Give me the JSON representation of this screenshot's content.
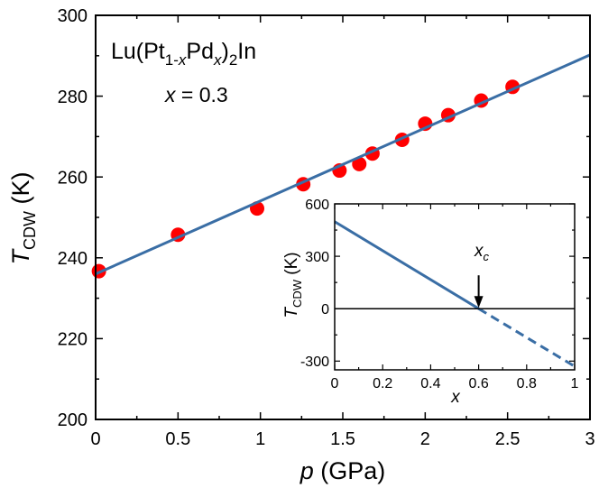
{
  "chart_data": [
    {
      "type": "scatter",
      "title": "",
      "xlabel": {
        "main": "p",
        "rest": " (GPa)"
      },
      "ylabel": {
        "main": "T",
        "sub": "CDW",
        "rest": " (K)"
      },
      "xlim": [
        0,
        3
      ],
      "ylim": [
        200,
        300
      ],
      "xticks": [
        0,
        0.5,
        1,
        1.5,
        2,
        2.5,
        3
      ],
      "xtick_labels": [
        "0",
        "0.5",
        "1",
        "1.5",
        "2",
        "2.5",
        "3"
      ],
      "yticks": [
        200,
        220,
        240,
        260,
        280,
        300
      ],
      "ytick_labels": [
        "200",
        "220",
        "240",
        "260",
        "280",
        "300"
      ],
      "grid": false,
      "annotations": {
        "compound": {
          "a": "Lu(Pt",
          "b": "1-",
          "c": "x",
          "d": "Pd",
          "e": "x",
          "f": ")",
          "g": "2",
          "h": "In"
        },
        "composition": {
          "var": "x",
          "rest": " = 0.3"
        }
      },
      "series": [
        {
          "marker": "circle",
          "color": "#ff0000",
          "points": [
            [
              0.02,
              236.7
            ],
            [
              0.5,
              245.7
            ],
            [
              0.98,
              252.2
            ],
            [
              1.26,
              258.2
            ],
            [
              1.48,
              261.6
            ],
            [
              1.6,
              263.2
            ],
            [
              1.68,
              265.8
            ],
            [
              1.86,
              269.2
            ],
            [
              2.0,
              273.2
            ],
            [
              2.14,
              275.3
            ],
            [
              2.34,
              278.9
            ],
            [
              2.53,
              282.3
            ]
          ]
        },
        {
          "style": "line",
          "color": "#3a6ea5",
          "points": [
            [
              0,
              236
            ],
            [
              3,
              290.2
            ]
          ]
        }
      ]
    },
    {
      "type": "line",
      "title": "",
      "xlabel": {
        "main": "x"
      },
      "ylabel": {
        "main": "T",
        "sub": "CDW",
        "rest": " (K)"
      },
      "xlim": [
        0,
        1
      ],
      "ylim": [
        -350,
        600
      ],
      "xticks": [
        0,
        0.2,
        0.4,
        0.6,
        0.8,
        1
      ],
      "xtick_labels": [
        "0",
        "0.2",
        "0.4",
        "0.6",
        "0.8",
        "1"
      ],
      "yticks": [
        -300,
        0,
        300,
        600
      ],
      "ytick_labels": [
        "-300",
        "0",
        "300",
        "600"
      ],
      "grid": false,
      "annotations": {
        "critical": {
          "main": "x",
          "sub": "c",
          "x": 0.6,
          "y": 0
        }
      },
      "series": [
        {
          "style": "solid",
          "color": "#3a6ea5",
          "points": [
            [
              0,
              498
            ],
            [
              0.6,
              0
            ]
          ]
        },
        {
          "style": "dashed",
          "color": "#3a6ea5",
          "points": [
            [
              0.6,
              0
            ],
            [
              1,
              -330
            ]
          ]
        },
        {
          "style": "baseline",
          "color": "#000000",
          "points": [
            [
              0,
              0
            ],
            [
              1,
              0
            ]
          ]
        }
      ]
    }
  ]
}
